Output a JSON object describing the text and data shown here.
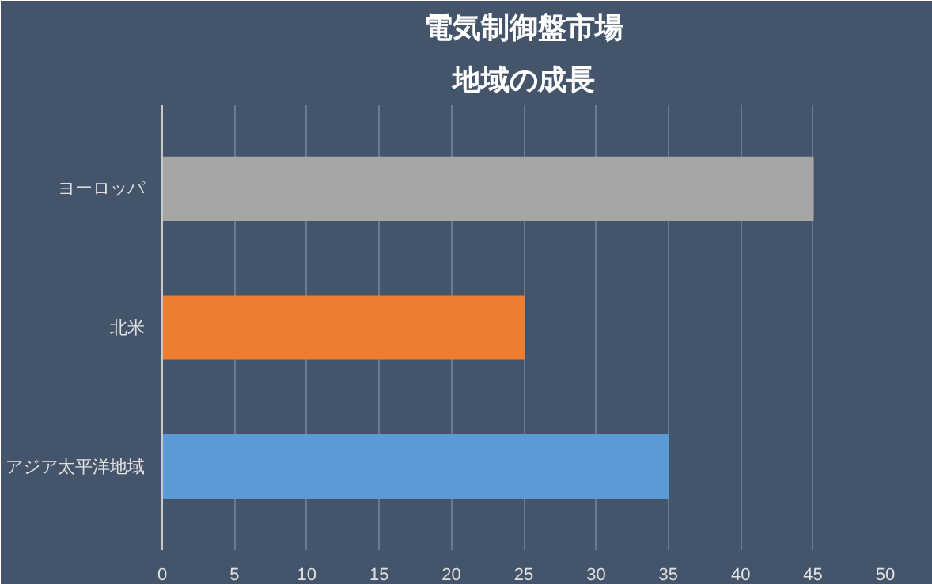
{
  "chart_data": {
    "type": "bar",
    "orientation": "horizontal",
    "title": "電気制御盤市場",
    "subtitle": "地域の成長",
    "categories": [
      "ヨーロッパ",
      "北米",
      "アジア太平洋地域"
    ],
    "values": [
      45,
      25,
      35
    ],
    "colors": [
      "#a5a5a5",
      "#ed7d31",
      "#5b9bd5"
    ],
    "xlim": [
      0,
      50
    ],
    "xticks": [
      0,
      5,
      10,
      15,
      20,
      25,
      30,
      35,
      40,
      45,
      50
    ],
    "grid": "x"
  }
}
